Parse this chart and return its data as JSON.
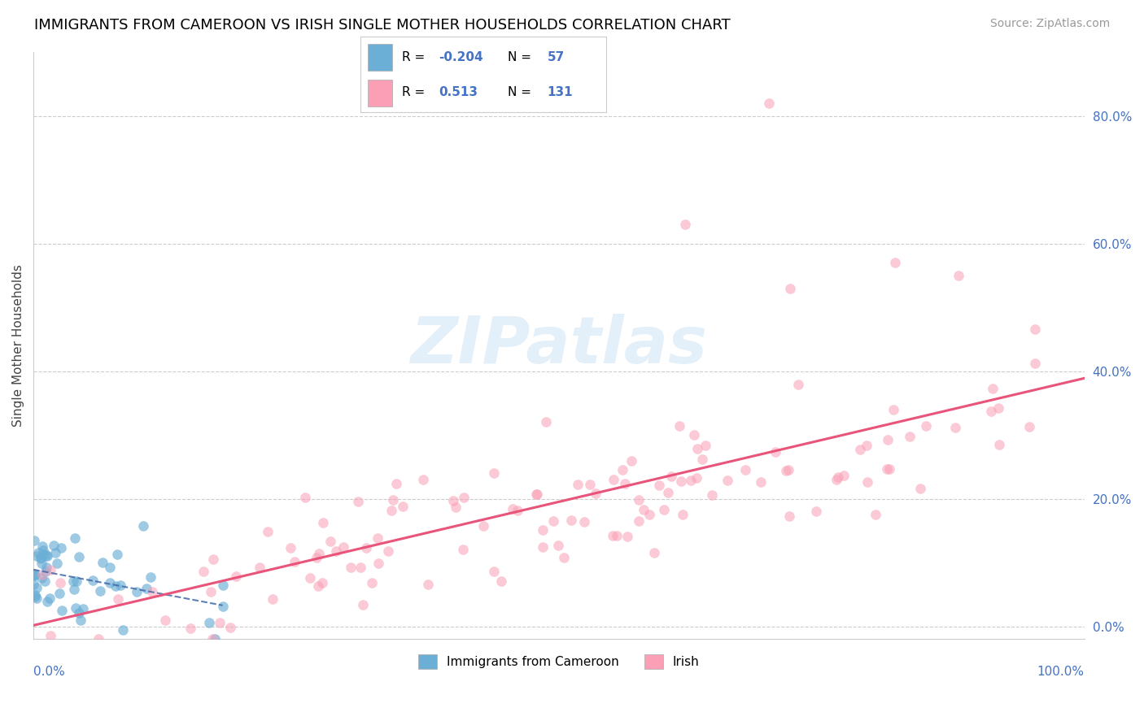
{
  "title": "IMMIGRANTS FROM CAMEROON VS IRISH SINGLE MOTHER HOUSEHOLDS CORRELATION CHART",
  "source": "Source: ZipAtlas.com",
  "ylabel": "Single Mother Households",
  "legend1_label": "Immigrants from Cameroon",
  "legend2_label": "Irish",
  "blue_color": "#6baed6",
  "pink_color": "#fa9fb5",
  "blue_r": -0.204,
  "pink_r": 0.513,
  "blue_n": 57,
  "pink_n": 131,
  "yticks": [
    0.0,
    0.2,
    0.4,
    0.6,
    0.8
  ],
  "ytick_labels": [
    "0.0%",
    "20.0%",
    "40.0%",
    "60.0%",
    "80.0%"
  ]
}
